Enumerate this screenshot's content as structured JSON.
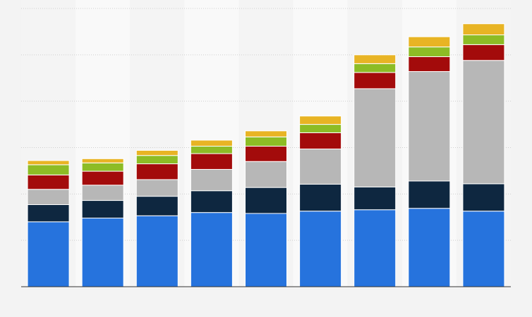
{
  "chart_data": {
    "type": "bar",
    "stacked": true,
    "title": "",
    "xlabel": "",
    "ylabel": "",
    "categories": [
      "",
      "",
      "",
      "",
      "",
      "",
      "",
      "",
      ""
    ],
    "ylim": [
      0,
      6
    ],
    "grid": true,
    "legend": "none",
    "series": [
      {
        "color": "#2673dd",
        "values": [
          1.4,
          1.48,
          1.53,
          1.6,
          1.58,
          1.63,
          1.66,
          1.69,
          1.63
        ]
      },
      {
        "color": "#0e2740",
        "values": [
          0.37,
          0.38,
          0.42,
          0.47,
          0.56,
          0.58,
          0.49,
          0.59,
          0.59
        ]
      },
      {
        "color": "#b7b7b7",
        "values": [
          0.33,
          0.33,
          0.36,
          0.46,
          0.56,
          0.76,
          2.12,
          2.36,
          2.66
        ]
      },
      {
        "color": "#a30b0b",
        "values": [
          0.31,
          0.3,
          0.34,
          0.34,
          0.33,
          0.35,
          0.35,
          0.32,
          0.34
        ]
      },
      {
        "color": "#8dbc25",
        "values": [
          0.22,
          0.18,
          0.18,
          0.16,
          0.2,
          0.18,
          0.19,
          0.21,
          0.21
        ]
      },
      {
        "color": "#e8b424",
        "values": [
          0.09,
          0.09,
          0.11,
          0.13,
          0.13,
          0.18,
          0.19,
          0.22,
          0.24
        ]
      }
    ]
  }
}
